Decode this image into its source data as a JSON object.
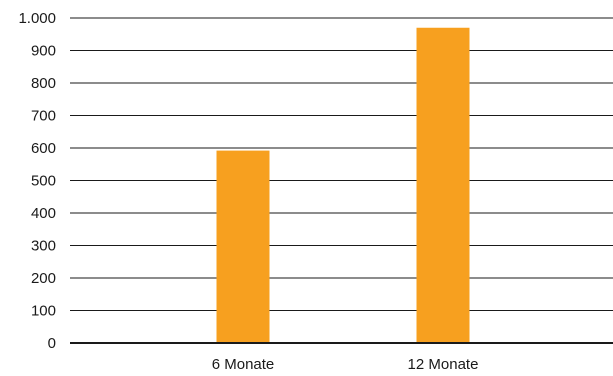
{
  "chart_data": {
    "type": "bar",
    "title": "",
    "xlabel": "",
    "ylabel": "",
    "categories": [
      "6 Monate",
      "12 Monate"
    ],
    "values": [
      592,
      970
    ],
    "ylim": [
      0,
      1000
    ],
    "yticks": [
      0,
      100,
      200,
      300,
      400,
      500,
      600,
      700,
      800,
      900,
      1000
    ],
    "ytick_labels": [
      "0",
      "100",
      "200",
      "300",
      "400",
      "500",
      "600",
      "700",
      "800",
      "900",
      "1.000"
    ],
    "grid": true,
    "bar_color": "#f7a01f",
    "grid_color": "#1a1a1a",
    "text_color": "#1a1a1a"
  }
}
